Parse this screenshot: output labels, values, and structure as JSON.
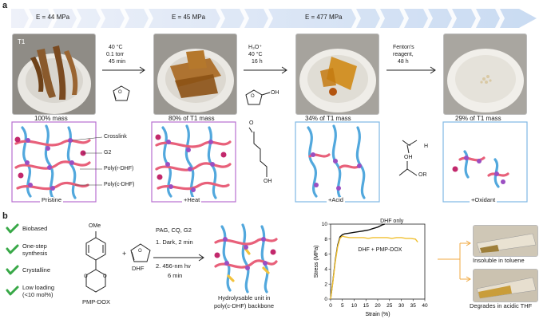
{
  "panel_a": {
    "label": "a",
    "banner": [
      "E = 44 MPa",
      "E = 45 MPa",
      "E = 477 MPa"
    ],
    "photo1_label": "T1",
    "step1": [
      "40 °C",
      "0.1 torr",
      "45 min"
    ],
    "step2": [
      "H₃O⁺",
      "40 °C",
      "16 h"
    ],
    "step3": [
      "Fenton's",
      "reagent,",
      "48 h"
    ],
    "masses": [
      "100% mass",
      "80% of T1 mass",
      "34%  of T1 mass",
      "29% of T1 mass"
    ],
    "legend": [
      "Crosslink",
      "G2",
      "Poly(r-DHF)",
      "Poly(c-DHF)"
    ],
    "net_labels": [
      "Pristine",
      "+Heat",
      "+Acid",
      "+Oxidant"
    ],
    "mol_labels": [
      "OH",
      "O",
      "H",
      "OH",
      "OH",
      "OR"
    ]
  },
  "panel_b": {
    "label": "b",
    "features": [
      "Biobased",
      "One-step\nsynthesis",
      "Crystalline",
      "Low loading\n(<10 mol%)"
    ],
    "ome": "OMe",
    "plus": "+",
    "pmp": "PMP-DOX",
    "dhf": "DHF",
    "conditions": [
      "PAG, CQ, G2",
      "1. Dark, 2 min",
      "2.  456-nm hv",
      "6 min"
    ],
    "product": [
      "Hydrolysable unit in",
      "poly(c-DHF) backbone"
    ],
    "photo_captions": [
      "Insoluble in toluene",
      "Degrades in acidic THF"
    ],
    "colors": {
      "green": "#38a847",
      "pink": "#e8607a",
      "blue": "#52a8dd",
      "purple": "#9b4fc2",
      "yellow": "#f2c23c"
    }
  },
  "chart_data": {
    "type": "line",
    "xlabel": "Strain (%)",
    "ylabel": "Stress (MPa)",
    "xlim": [
      0,
      40
    ],
    "ylim": [
      0,
      10
    ],
    "xticks": [
      "0",
      "5",
      "10",
      "15",
      "20",
      "25",
      "30",
      "35",
      "40"
    ],
    "yticks": [
      "0",
      "2",
      "4",
      "6",
      "8",
      "10"
    ],
    "series": [
      {
        "name": "DHF only",
        "color": "#111111",
        "x": [
          0,
          1,
          2,
          3,
          4,
          5,
          6,
          8,
          10,
          12,
          14,
          16,
          18,
          20,
          22,
          23
        ],
        "y": [
          0,
          2.5,
          5.2,
          7.2,
          8.3,
          8.6,
          8.7,
          8.8,
          8.9,
          9.0,
          9.1,
          9.2,
          9.4,
          9.6,
          9.9,
          10.0
        ]
      },
      {
        "name": "DHF + PMP-DOX",
        "color": "#f0c030",
        "x": [
          0,
          1,
          2,
          3,
          4,
          5,
          6,
          8,
          10,
          12,
          14,
          16,
          18,
          20,
          22,
          24,
          26,
          28,
          30,
          32,
          34,
          36,
          37
        ],
        "y": [
          0,
          2.4,
          5.0,
          7.0,
          8.1,
          8.4,
          8.3,
          8.2,
          8.2,
          8.2,
          8.2,
          8.1,
          8.2,
          8.2,
          8.2,
          8.2,
          8.1,
          8.2,
          8.2,
          8.1,
          8.1,
          8.0,
          7.6
        ]
      }
    ]
  }
}
